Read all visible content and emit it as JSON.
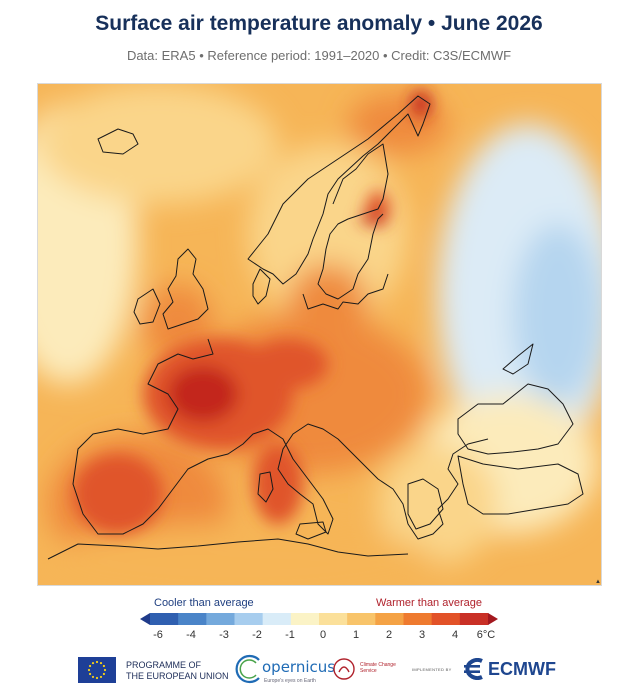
{
  "title": "Surface air temperature anomaly • June 2026",
  "subtitle": "Data: ERA5 • Reference period: 1991–2020 • Credit: C3S/ECMWF",
  "legend": {
    "cool_label": "Cooler than average",
    "warm_label": "Warmer than average",
    "ticks": [
      "-6",
      "-4",
      "-3",
      "-2",
      "-1",
      "0",
      "1",
      "2",
      "3",
      "4",
      "6°C"
    ],
    "colors": [
      "#1f3b8a",
      "#2f5fb0",
      "#4a84c8",
      "#74a9dc",
      "#a7cdee",
      "#d9ecf8",
      "#fbf3c6",
      "#fbe09a",
      "#f8c46a",
      "#f4a245",
      "#ee7a2f",
      "#e25228",
      "#c93026",
      "#a3181f"
    ]
  },
  "map_colors": {
    "very_hot": "#c3271e",
    "hot": "#e0552b",
    "warm": "#ef8a3c",
    "mild": "#f6b557",
    "slight": "#fad58a",
    "near_zero": "#fcebbb",
    "cool": "#dcebf6",
    "cooler": "#b5d5ef"
  },
  "logos": {
    "eu_line1": "PROGRAMME OF",
    "eu_line2": "THE EUROPEAN UNION",
    "copernicus": "opernicus",
    "copernicus_sub": "Europe's eyes on Earth",
    "c3s": "Climate Change Service",
    "implemented_by": "IMPLEMENTED BY",
    "ecmwf": "ECMWF"
  }
}
